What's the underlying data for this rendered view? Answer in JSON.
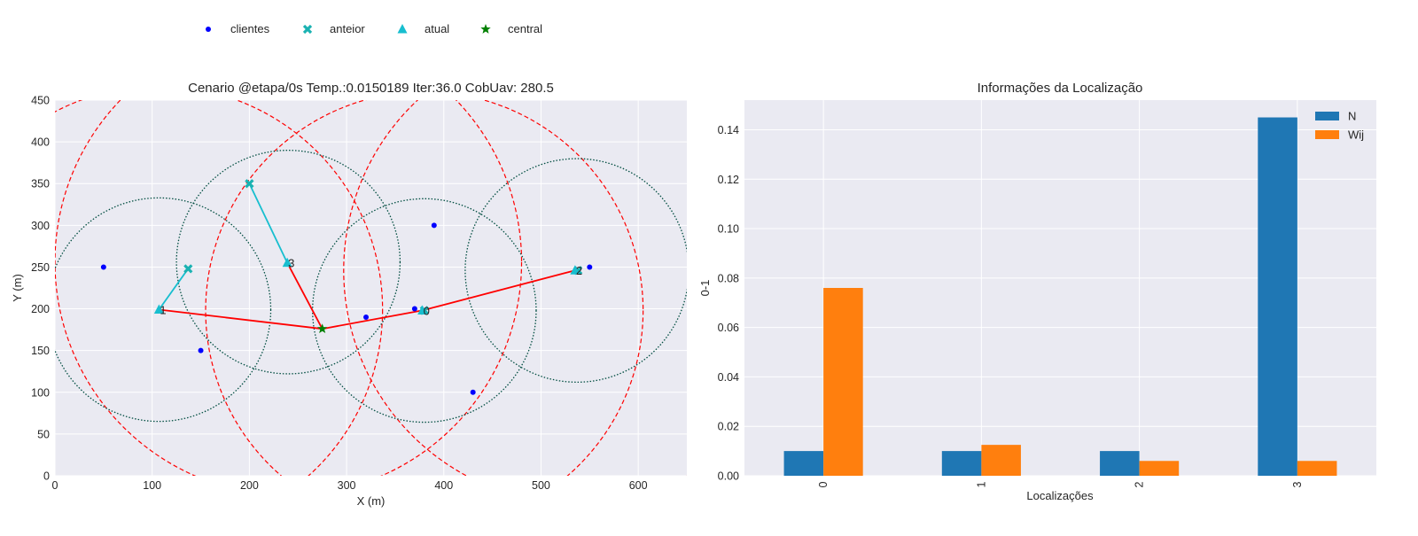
{
  "legend": {
    "items": [
      {
        "label": "clientes",
        "marker": "dot",
        "color": "#0000ff"
      },
      {
        "label": "anteior",
        "marker": "x",
        "color": "#1ab2b2"
      },
      {
        "label": "atual",
        "marker": "triangle",
        "color": "#17becf"
      },
      {
        "label": "central",
        "marker": "star",
        "color": "#008000"
      }
    ]
  },
  "colors": {
    "panel_bg": "#eaeaf2",
    "grid": "#ffffff",
    "client": "#0000ff",
    "previous": "#1ab2b2",
    "current": "#17becf",
    "central": "#008000",
    "link": "#ff0000",
    "move": "#17becf",
    "coverage": "#004d40",
    "range": "#ff0000",
    "bar_n": "#1f77b4",
    "bar_wij": "#ff7f0e"
  },
  "chart_data": [
    {
      "type": "scatter",
      "title": "Cenario @etapa/0s Temp.:0.0150189 Iter:36.0 CobUav: 280.5",
      "xlabel": "X (m)",
      "ylabel": "Y (m)",
      "xlim": [
        0,
        650
      ],
      "ylim": [
        0,
        450
      ],
      "xticks": [
        0,
        100,
        200,
        300,
        400,
        500,
        600
      ],
      "yticks": [
        0,
        50,
        100,
        150,
        200,
        250,
        300,
        350,
        400,
        450
      ],
      "grid": true,
      "clients": [
        {
          "x": 50,
          "y": 250
        },
        {
          "x": 150,
          "y": 150
        },
        {
          "x": 320,
          "y": 190
        },
        {
          "x": 370,
          "y": 200
        },
        {
          "x": 390,
          "y": 300
        },
        {
          "x": 430,
          "y": 100
        },
        {
          "x": 550,
          "y": 250
        }
      ],
      "previous": [
        {
          "x": 137,
          "y": 248
        },
        {
          "x": 200,
          "y": 350
        },
        {
          "x": 380,
          "y": 198
        },
        {
          "x": 538,
          "y": 246
        }
      ],
      "current": [
        {
          "x": 107,
          "y": 199,
          "label": "1"
        },
        {
          "x": 239,
          "y": 255,
          "label": "3"
        },
        {
          "x": 378,
          "y": 198,
          "label": "0"
        },
        {
          "x": 535,
          "y": 246,
          "label": "2"
        }
      ],
      "central": {
        "x": 275,
        "y": 176
      },
      "links": [
        [
          0,
          2
        ],
        [
          2,
          3
        ],
        [
          1
        ]
      ],
      "coverage_radius": 115,
      "coverage_circles": [
        {
          "x": 107,
          "y": 199
        },
        {
          "x": 240,
          "y": 256
        },
        {
          "x": 380,
          "y": 198
        },
        {
          "x": 537,
          "y": 246
        }
      ],
      "range_circles": [
        {
          "x": 107,
          "y": 199,
          "r": 230
        },
        {
          "x": 240,
          "y": 256,
          "r": 240
        },
        {
          "x": 380,
          "y": 198,
          "r": 225
        },
        {
          "x": 537,
          "y": 246,
          "r": 240
        }
      ]
    },
    {
      "type": "bar",
      "title": "Informações da Localização",
      "xlabel": "Localizações",
      "ylabel": "0-1",
      "categories": [
        "0",
        "1",
        "2",
        "3"
      ],
      "ylim": [
        0,
        0.152
      ],
      "yticks": [
        0.0,
        0.02,
        0.04,
        0.06,
        0.08,
        0.1,
        0.12,
        0.14
      ],
      "grid": true,
      "legend_position": "top-right",
      "series": [
        {
          "name": "N",
          "values": [
            0.01,
            0.01,
            0.01,
            0.145
          ]
        },
        {
          "name": "Wij",
          "values": [
            0.076,
            0.0125,
            0.006,
            0.006
          ]
        }
      ]
    }
  ]
}
